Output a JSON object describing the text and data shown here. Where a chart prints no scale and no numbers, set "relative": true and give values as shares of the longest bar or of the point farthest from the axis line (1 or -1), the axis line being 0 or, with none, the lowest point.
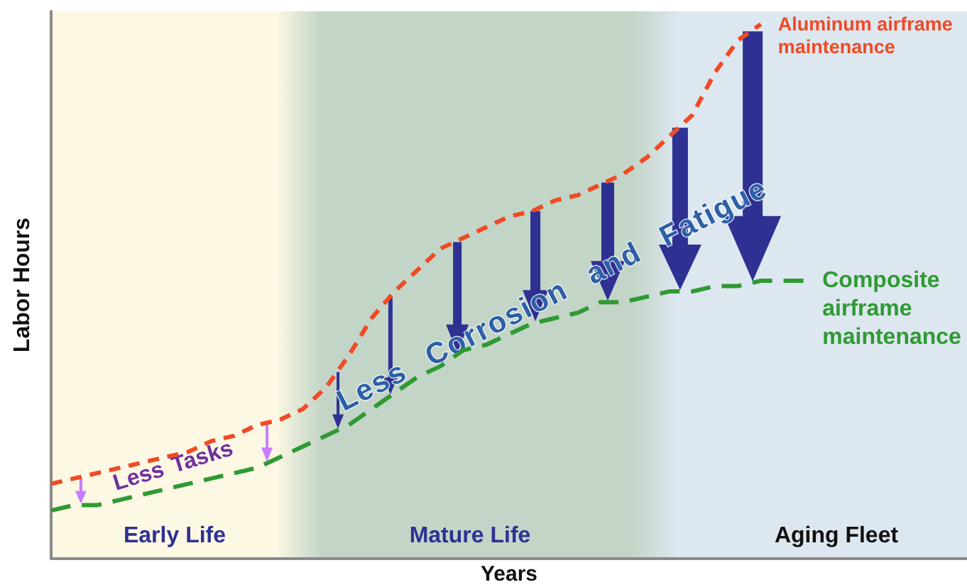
{
  "chart_data": {
    "type": "line",
    "xlabel": "Years",
    "ylabel": "Labor Hours",
    "relative": true,
    "tick_labels": false,
    "line_style": "dashed",
    "marker": "none",
    "categories": [
      null,
      null,
      null,
      null,
      null,
      null,
      null,
      null,
      null,
      null,
      null,
      null,
      null,
      null,
      null,
      null,
      null,
      null,
      null,
      null,
      null,
      null,
      null,
      null,
      null,
      null,
      null,
      null,
      null,
      null,
      null,
      null,
      null,
      null,
      null,
      null,
      null,
      null,
      null,
      null,
      null
    ],
    "series": [
      {
        "name": "Aluminum airframe maintenance",
        "color": "#f04a24",
        "values": [
          0.14,
          0.15,
          0.16,
          0.17,
          0.18,
          0.19,
          0.2,
          0.22,
          0.23,
          0.25,
          0.26,
          0.28,
          0.32,
          0.38,
          0.45,
          0.5,
          0.54,
          0.58,
          0.6,
          0.62,
          0.64,
          0.65,
          0.67,
          0.68,
          0.7,
          0.72,
          0.75,
          0.79,
          0.83,
          0.91,
          0.97,
          1,
          null,
          null,
          null,
          null,
          null,
          null,
          null,
          null,
          null
        ]
      },
      {
        "name": "Composite airframe maintenance",
        "color": "#2f9a33",
        "values": [
          0.09,
          0.1,
          0.1,
          0.11,
          0.12,
          0.13,
          0.14,
          0.15,
          0.16,
          0.17,
          0.19,
          0.21,
          0.23,
          0.25,
          0.28,
          0.31,
          0.34,
          0.36,
          0.39,
          0.4,
          0.42,
          0.44,
          0.45,
          0.46,
          0.48,
          0.48,
          0.49,
          0.5,
          0.5,
          0.51,
          0.51,
          0.52,
          0.52,
          0.52,
          null,
          null,
          null,
          null,
          null,
          null,
          null
        ]
      }
    ],
    "annotations": [
      "Less Tasks",
      "Less Corrosion and Fatigue",
      "Early Life",
      "Mature Life",
      "Aging Fleet"
    ]
  }
}
